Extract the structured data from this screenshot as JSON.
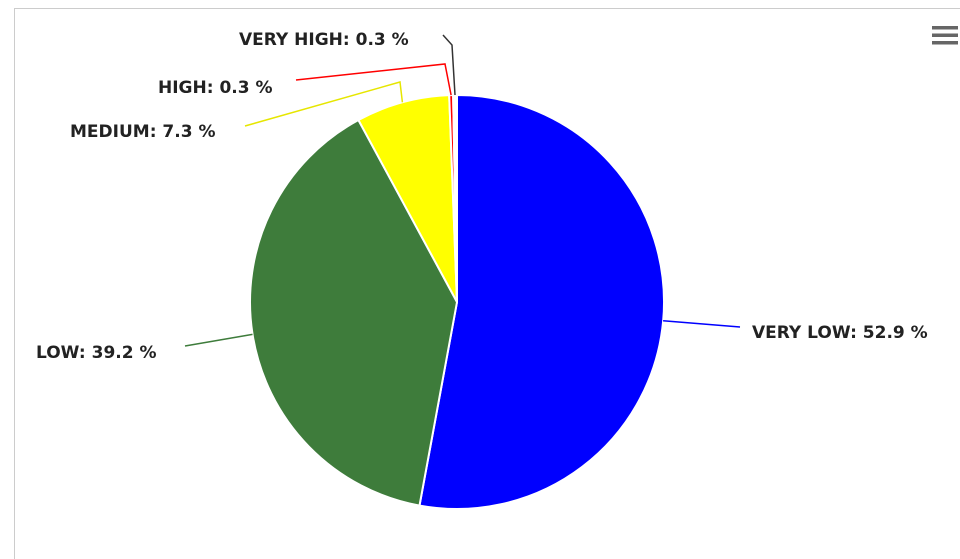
{
  "chart_data": {
    "type": "pie",
    "title": "",
    "slices": [
      {
        "name": "VERY LOW",
        "value": 52.9,
        "label": "VERY LOW: 52.9 %",
        "color": "#0000ff"
      },
      {
        "name": "LOW",
        "value": 39.2,
        "label": "LOW: 39.2 %",
        "color": "#3e7c3b"
      },
      {
        "name": "MEDIUM",
        "value": 7.3,
        "label": "MEDIUM: 7.3 %",
        "color": "#ffff00"
      },
      {
        "name": "HIGH",
        "value": 0.3,
        "label": "HIGH: 0.3 %",
        "color": "#ff0000"
      },
      {
        "name": "VERY HIGH",
        "value": 0.3,
        "label": "VERY HIGH: 0.3 %",
        "color": "#ffffff"
      }
    ],
    "legend": "none",
    "data_labels": "outside-with-connectors"
  },
  "toolbar": {
    "menu_icon": "hamburger-menu-icon"
  }
}
